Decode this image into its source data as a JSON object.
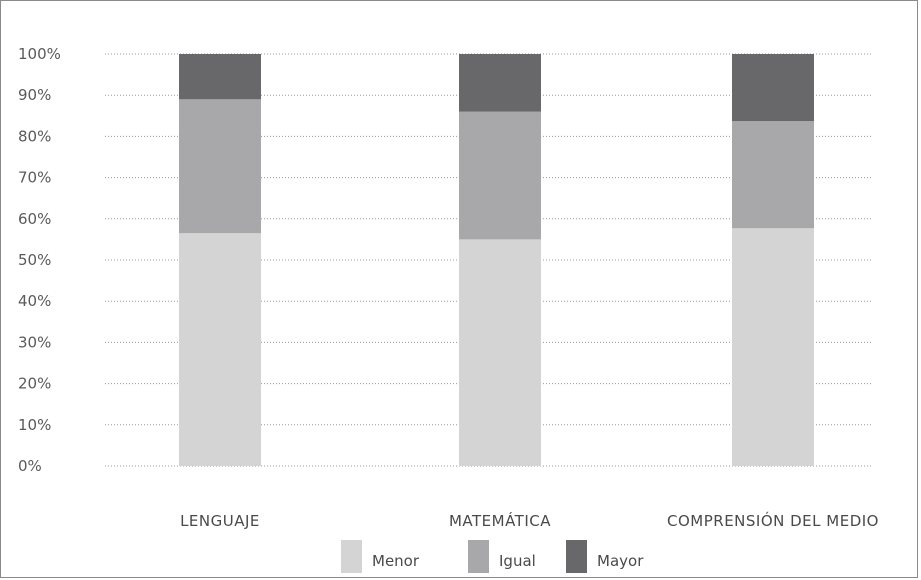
{
  "chart_data": {
    "type": "bar",
    "stacked": true,
    "categories": [
      "LENGUAJE",
      "MATEMÁTICA",
      "COMPRENSIÓN DEL MEDIO"
    ],
    "series": [
      {
        "name": "Menor",
        "values": [
          56.5,
          55.0,
          57.7
        ],
        "color": "#d4d4d4"
      },
      {
        "name": "Igual",
        "values": [
          32.5,
          31.0,
          26.0
        ],
        "color": "#a8a8aa"
      },
      {
        "name": "Mayor",
        "values": [
          11.0,
          14.0,
          16.3
        ],
        "color": "#68686b"
      }
    ],
    "ylim": [
      0,
      100
    ],
    "yticks": [
      "0%",
      "10%",
      "20%",
      "30%",
      "40%",
      "50%",
      "60%",
      "70%",
      "80%",
      "90%",
      "100%"
    ],
    "grid": true,
    "legend_position": "bottom-center",
    "title": "",
    "xlabel": "",
    "ylabel": ""
  }
}
